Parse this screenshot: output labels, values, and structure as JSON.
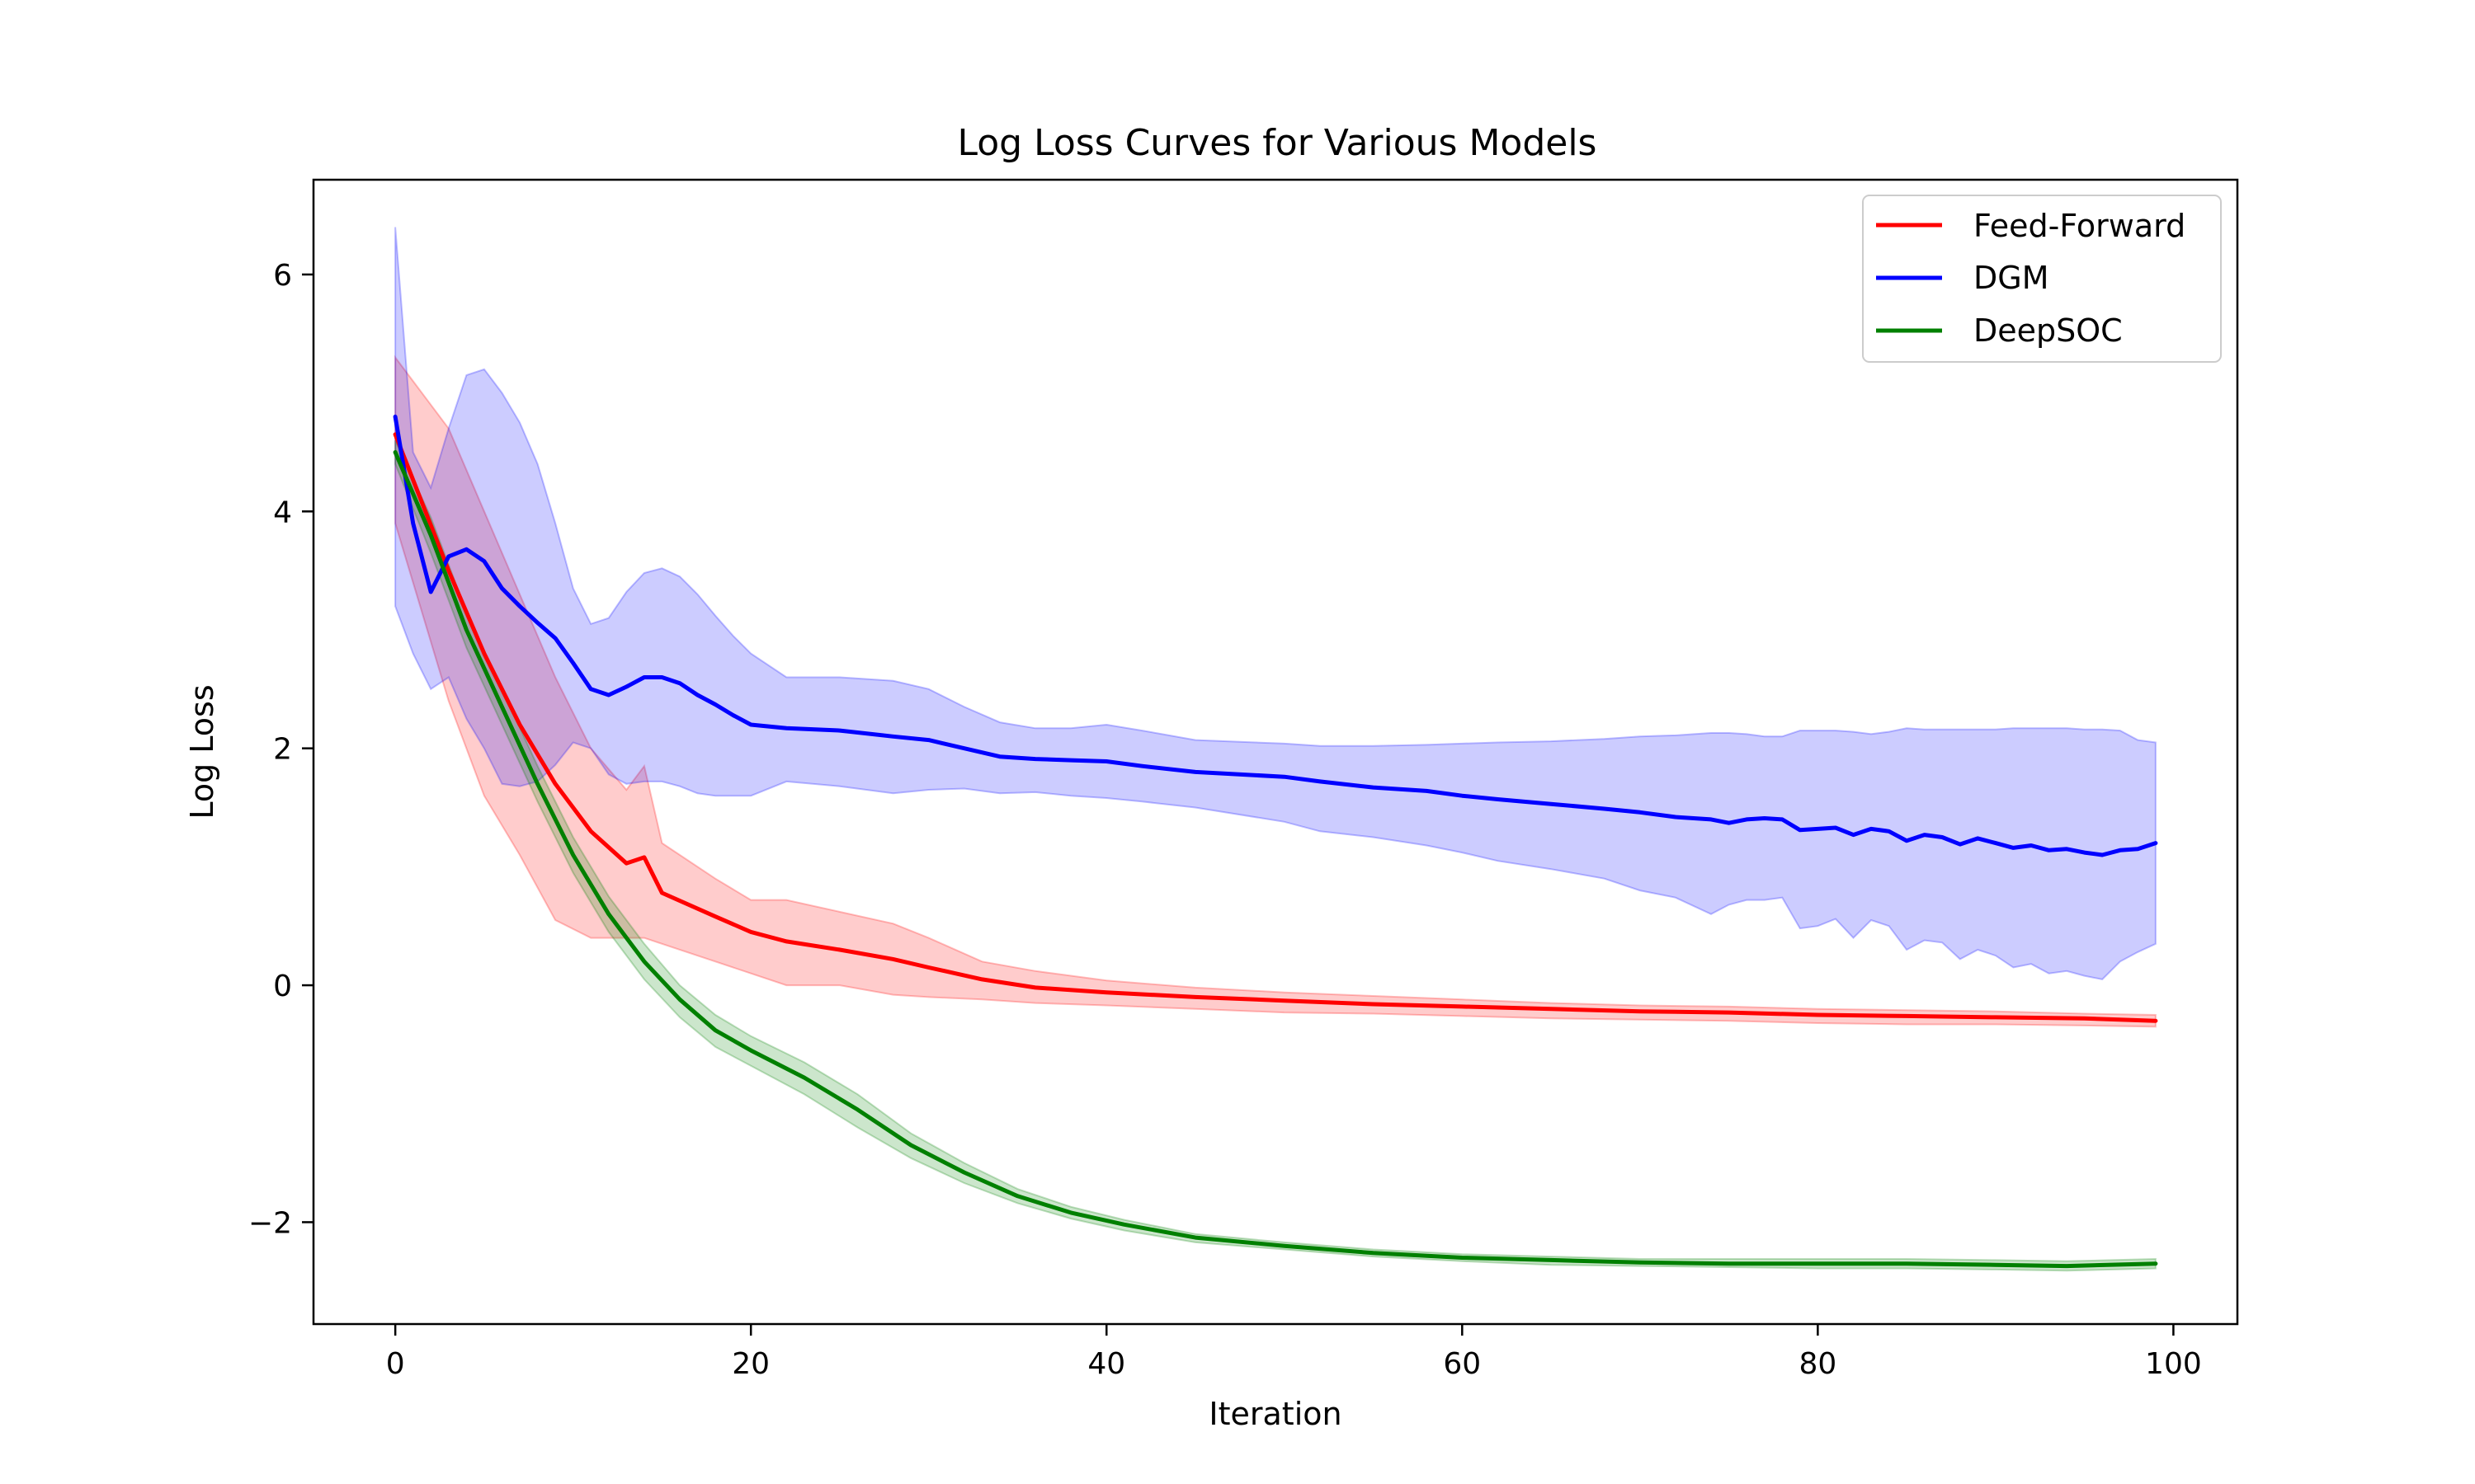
{
  "chart_data": {
    "type": "line",
    "title": "Log Loss Curves for Various Models",
    "xlabel": "Iteration",
    "ylabel": "Log Loss",
    "xlim": [
      -4.6,
      103.6
    ],
    "ylim": [
      -2.86,
      6.8
    ],
    "grid": false,
    "legend_position": "top-right",
    "x_ticks": [
      0,
      20,
      40,
      60,
      80,
      100
    ],
    "y_ticks": [
      -2,
      0,
      2,
      4,
      6
    ],
    "x_tick_labels": [
      "0",
      "20",
      "40",
      "60",
      "80",
      "100"
    ],
    "y_tick_labels": [
      "−2",
      "0",
      "2",
      "4",
      "6"
    ],
    "series": [
      {
        "name": "Feed-Forward",
        "color": "#ff0000",
        "band_color": "#ff0000",
        "x": [
          0,
          3,
          5,
          7,
          9,
          11,
          13,
          14,
          15,
          18,
          20,
          22,
          25,
          28,
          30,
          33,
          36,
          40,
          45,
          50,
          55,
          60,
          65,
          70,
          75,
          80,
          85,
          90,
          95,
          99
        ],
        "values": [
          4.65,
          3.5,
          2.8,
          2.2,
          1.7,
          1.3,
          1.03,
          1.08,
          0.78,
          0.58,
          0.45,
          0.37,
          0.3,
          0.22,
          0.15,
          0.05,
          -0.02,
          -0.06,
          -0.1,
          -0.13,
          -0.16,
          -0.18,
          -0.2,
          -0.22,
          -0.23,
          -0.25,
          -0.26,
          -0.27,
          -0.28,
          -0.3
        ],
        "upper": [
          5.3,
          4.7,
          4.0,
          3.3,
          2.6,
          2.0,
          1.65,
          1.85,
          1.2,
          0.9,
          0.72,
          0.72,
          0.62,
          0.52,
          0.4,
          0.2,
          0.12,
          0.04,
          -0.02,
          -0.06,
          -0.09,
          -0.12,
          -0.15,
          -0.17,
          -0.18,
          -0.2,
          -0.21,
          -0.22,
          -0.24,
          -0.25
        ],
        "lower": [
          3.9,
          2.4,
          1.6,
          1.1,
          0.55,
          0.4,
          0.4,
          0.4,
          0.35,
          0.2,
          0.1,
          0.0,
          0.0,
          -0.08,
          -0.1,
          -0.12,
          -0.15,
          -0.17,
          -0.2,
          -0.23,
          -0.24,
          -0.26,
          -0.28,
          -0.29,
          -0.3,
          -0.32,
          -0.33,
          -0.33,
          -0.34,
          -0.35
        ]
      },
      {
        "name": "DGM",
        "color": "#0000ff",
        "band_color": "#0000ff",
        "x": [
          0,
          1,
          2,
          3,
          4,
          5,
          6,
          7,
          8,
          9,
          10,
          11,
          12,
          13,
          14,
          15,
          16,
          17,
          18,
          19,
          20,
          22,
          25,
          28,
          30,
          32,
          34,
          36,
          38,
          40,
          42,
          45,
          50,
          52,
          55,
          58,
          60,
          62,
          65,
          68,
          70,
          72,
          74,
          75,
          76,
          77,
          78,
          79,
          80,
          81,
          82,
          83,
          84,
          85,
          86,
          87,
          88,
          89,
          90,
          91,
          92,
          93,
          94,
          95,
          96,
          97,
          98,
          99
        ],
        "values": [
          4.8,
          3.9,
          3.32,
          3.62,
          3.68,
          3.58,
          3.35,
          3.2,
          3.06,
          2.93,
          2.72,
          2.5,
          2.45,
          2.52,
          2.6,
          2.6,
          2.55,
          2.45,
          2.37,
          2.28,
          2.2,
          2.17,
          2.15,
          2.1,
          2.07,
          2.0,
          1.93,
          1.91,
          1.9,
          1.89,
          1.85,
          1.8,
          1.76,
          1.72,
          1.67,
          1.64,
          1.6,
          1.57,
          1.53,
          1.49,
          1.46,
          1.42,
          1.4,
          1.37,
          1.4,
          1.41,
          1.4,
          1.31,
          1.32,
          1.33,
          1.27,
          1.32,
          1.3,
          1.22,
          1.27,
          1.25,
          1.19,
          1.24,
          1.2,
          1.16,
          1.18,
          1.14,
          1.15,
          1.12,
          1.1,
          1.14,
          1.15,
          1.2
        ],
        "upper": [
          6.4,
          4.5,
          4.2,
          4.7,
          5.15,
          5.2,
          5.0,
          4.75,
          4.4,
          3.9,
          3.35,
          3.05,
          3.1,
          3.32,
          3.48,
          3.52,
          3.45,
          3.3,
          3.12,
          2.95,
          2.8,
          2.6,
          2.6,
          2.57,
          2.5,
          2.35,
          2.22,
          2.17,
          2.17,
          2.2,
          2.15,
          2.07,
          2.04,
          2.02,
          2.02,
          2.03,
          2.04,
          2.05,
          2.06,
          2.08,
          2.1,
          2.11,
          2.13,
          2.13,
          2.12,
          2.1,
          2.1,
          2.15,
          2.15,
          2.15,
          2.14,
          2.12,
          2.14,
          2.17,
          2.16,
          2.16,
          2.16,
          2.16,
          2.16,
          2.17,
          2.17,
          2.17,
          2.17,
          2.16,
          2.16,
          2.15,
          2.07,
          2.05
        ],
        "lower": [
          3.2,
          2.8,
          2.5,
          2.6,
          2.25,
          2.0,
          1.7,
          1.68,
          1.72,
          1.86,
          2.05,
          2.0,
          1.78,
          1.7,
          1.72,
          1.72,
          1.68,
          1.62,
          1.6,
          1.6,
          1.6,
          1.72,
          1.68,
          1.62,
          1.65,
          1.66,
          1.62,
          1.63,
          1.6,
          1.58,
          1.55,
          1.5,
          1.38,
          1.3,
          1.25,
          1.18,
          1.12,
          1.05,
          0.98,
          0.9,
          0.8,
          0.74,
          0.6,
          0.68,
          0.72,
          0.72,
          0.74,
          0.48,
          0.5,
          0.56,
          0.4,
          0.55,
          0.5,
          0.3,
          0.38,
          0.36,
          0.22,
          0.3,
          0.25,
          0.15,
          0.18,
          0.1,
          0.12,
          0.08,
          0.05,
          0.2,
          0.28,
          0.35
        ]
      },
      {
        "name": "DeepSOC",
        "color": "#008000",
        "band_color": "#008000",
        "x": [
          0,
          2,
          4,
          6,
          8,
          10,
          12,
          14,
          16,
          18,
          20,
          23,
          26,
          29,
          32,
          35,
          38,
          41,
          45,
          50,
          55,
          60,
          65,
          70,
          75,
          80,
          85,
          90,
          94,
          99
        ],
        "values": [
          4.5,
          3.8,
          3.0,
          2.35,
          1.7,
          1.1,
          0.6,
          0.2,
          -0.12,
          -0.38,
          -0.55,
          -0.78,
          -1.05,
          -1.35,
          -1.58,
          -1.78,
          -1.92,
          -2.02,
          -2.13,
          -2.2,
          -2.26,
          -2.3,
          -2.32,
          -2.34,
          -2.35,
          -2.35,
          -2.35,
          -2.36,
          -2.37,
          -2.35
        ],
        "upper": [
          4.6,
          3.95,
          3.15,
          2.5,
          1.85,
          1.25,
          0.75,
          0.35,
          0.0,
          -0.25,
          -0.43,
          -0.65,
          -0.92,
          -1.25,
          -1.5,
          -1.72,
          -1.87,
          -1.98,
          -2.1,
          -2.17,
          -2.23,
          -2.27,
          -2.29,
          -2.31,
          -2.31,
          -2.31,
          -2.31,
          -2.32,
          -2.33,
          -2.31
        ],
        "lower": [
          4.4,
          3.65,
          2.85,
          2.2,
          1.55,
          0.95,
          0.45,
          0.05,
          -0.27,
          -0.52,
          -0.68,
          -0.92,
          -1.2,
          -1.46,
          -1.67,
          -1.84,
          -1.97,
          -2.07,
          -2.17,
          -2.23,
          -2.29,
          -2.33,
          -2.36,
          -2.37,
          -2.38,
          -2.39,
          -2.39,
          -2.4,
          -2.41,
          -2.39
        ]
      }
    ]
  }
}
